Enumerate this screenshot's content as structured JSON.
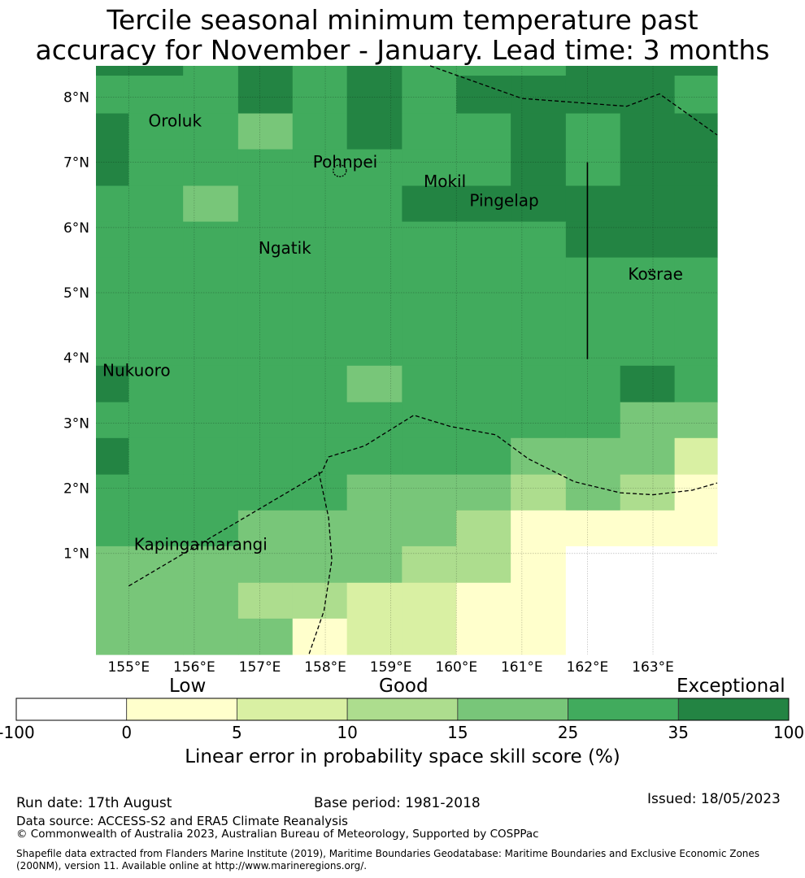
{
  "title": {
    "line1": "Tercile seasonal minimum temperature past",
    "line2": "accuracy for November - January. Lead time: 3 months"
  },
  "map": {
    "lon_range": [
      154.5,
      163.98
    ],
    "lat_range": [
      -0.55,
      8.48
    ],
    "lon_ticks": [
      {
        "value": 155,
        "label": "155°E"
      },
      {
        "value": 156,
        "label": "156°E"
      },
      {
        "value": 157,
        "label": "157°E"
      },
      {
        "value": 158,
        "label": "158°E"
      },
      {
        "value": 159,
        "label": "159°E"
      },
      {
        "value": 160,
        "label": "160°E"
      },
      {
        "value": 161,
        "label": "161°E"
      },
      {
        "value": 162,
        "label": "162°E"
      },
      {
        "value": 163,
        "label": "163°E"
      }
    ],
    "lat_ticks": [
      {
        "value": 8,
        "label": "8°N"
      },
      {
        "value": 7,
        "label": "7°N"
      },
      {
        "value": 6,
        "label": "6°N"
      },
      {
        "value": 5,
        "label": "5°N"
      },
      {
        "value": 4,
        "label": "4°N"
      },
      {
        "value": 3,
        "label": "3°N"
      },
      {
        "value": 2,
        "label": "2°N"
      },
      {
        "value": 1,
        "label": "1°N"
      }
    ],
    "grid_cells": {
      "lon_edges": [
        154.5,
        155.0,
        155.83,
        156.67,
        157.5,
        158.33,
        159.17,
        160.0,
        160.83,
        161.67,
        162.5,
        163.33,
        163.98
      ],
      "lat_edges": [
        8.48,
        8.33,
        7.75,
        7.2,
        6.64,
        6.09,
        5.54,
        4.98,
        4.43,
        3.88,
        3.32,
        2.77,
        2.21,
        1.66,
        1.11,
        0.55,
        0.0,
        -0.55
      ],
      "levels": [
        [
          6,
          6,
          5,
          6,
          5,
          6,
          5,
          5,
          5,
          6,
          6,
          6
        ],
        [
          5,
          5,
          5,
          6,
          5,
          6,
          5,
          6,
          6,
          6,
          6,
          5
        ],
        [
          6,
          5,
          5,
          4,
          5,
          6,
          5,
          5,
          6,
          5,
          6,
          6
        ],
        [
          6,
          5,
          5,
          5,
          5,
          5,
          5,
          5,
          6,
          5,
          6,
          6
        ],
        [
          5,
          5,
          4,
          5,
          5,
          5,
          6,
          6,
          6,
          6,
          6,
          6
        ],
        [
          5,
          5,
          5,
          5,
          5,
          5,
          5,
          5,
          5,
          6,
          6,
          6
        ],
        [
          5,
          5,
          5,
          5,
          5,
          5,
          5,
          5,
          5,
          5,
          5,
          5
        ],
        [
          5,
          5,
          5,
          5,
          5,
          5,
          5,
          5,
          5,
          5,
          5,
          5
        ],
        [
          5,
          5,
          5,
          5,
          5,
          5,
          5,
          5,
          5,
          5,
          5,
          5
        ],
        [
          6,
          5,
          5,
          5,
          5,
          4,
          5,
          5,
          5,
          5,
          6,
          5
        ],
        [
          5,
          5,
          5,
          5,
          5,
          5,
          5,
          5,
          5,
          5,
          4,
          4
        ],
        [
          6,
          5,
          5,
          5,
          5,
          5,
          5,
          5,
          4,
          4,
          4,
          2
        ],
        [
          5,
          5,
          5,
          5,
          5,
          4,
          4,
          4,
          3,
          4,
          3,
          1
        ],
        [
          5,
          5,
          5,
          4,
          4,
          4,
          4,
          3,
          1,
          1,
          1,
          1
        ],
        [
          4,
          4,
          4,
          4,
          4,
          4,
          3,
          3,
          1,
          0,
          0,
          0
        ],
        [
          4,
          4,
          4,
          3,
          3,
          2,
          2,
          1,
          1,
          0,
          0,
          0
        ],
        [
          4,
          4,
          4,
          4,
          1,
          2,
          2,
          1,
          1,
          0,
          0,
          0
        ]
      ]
    },
    "places": [
      {
        "name": "Oroluk",
        "lon": 155.3,
        "lat": 7.55
      },
      {
        "name": "Pohnpei",
        "lon": 157.81,
        "lat": 6.92
      },
      {
        "name": "Mokil",
        "lon": 159.5,
        "lat": 6.62
      },
      {
        "name": "Pingelap",
        "lon": 160.2,
        "lat": 6.33
      },
      {
        "name": "Ngatik",
        "lon": 156.98,
        "lat": 5.6
      },
      {
        "name": "Kosrae",
        "lon": 162.62,
        "lat": 5.2
      },
      {
        "name": "Nukuoro",
        "lon": 154.6,
        "lat": 3.72
      },
      {
        "name": "Kapingamarangi",
        "lon": 155.08,
        "lat": 1.05
      }
    ],
    "eez_boundaries": [
      [
        [
          159.6,
          8.48
        ],
        [
          161.0,
          7.98
        ],
        [
          162.6,
          7.86
        ],
        [
          163.1,
          8.05
        ],
        [
          163.98,
          7.42
        ]
      ],
      [
        [
          155.0,
          0.5
        ],
        [
          157.95,
          2.25
        ],
        [
          158.05,
          2.48
        ],
        [
          158.6,
          2.65
        ],
        [
          159.35,
          3.12
        ],
        [
          159.9,
          2.95
        ],
        [
          160.6,
          2.82
        ],
        [
          161.1,
          2.45
        ],
        [
          161.8,
          2.1
        ],
        [
          162.5,
          1.93
        ],
        [
          163.0,
          1.9
        ],
        [
          163.6,
          1.97
        ],
        [
          163.98,
          2.08
        ]
      ],
      [
        [
          157.9,
          2.25
        ],
        [
          158.05,
          1.55
        ],
        [
          158.1,
          0.9
        ],
        [
          157.98,
          0.12
        ],
        [
          157.75,
          -0.55
        ]
      ]
    ],
    "longitude_line": {
      "lon": 162.0,
      "lat_from": 3.98,
      "lat_to": 7.0
    },
    "islands": [
      {
        "name": "pohnpei-island",
        "lon": 158.22,
        "lat": 6.87,
        "rx": 0.1,
        "ry": 0.09
      },
      {
        "name": "kosrae-island",
        "lon": 162.98,
        "lat": 5.32,
        "rx": 0.05,
        "ry": 0.04
      }
    ]
  },
  "colorbar": {
    "boundaries": [
      "-100",
      "0",
      "5",
      "10",
      "15",
      "25",
      "35",
      "100"
    ],
    "colors": [
      "#ffffff",
      "#ffffcc",
      "#d9f0a3",
      "#addd8e",
      "#78c679",
      "#41ab5d",
      "#238443"
    ],
    "categories": {
      "low": "Low",
      "good": "Good",
      "exceptional": "Exceptional"
    },
    "label": "Linear error in probability space skill score (%)"
  },
  "footer": {
    "run_date": "Run date: 17th August",
    "base_period": "Base period: 1981-2018",
    "issued": "Issued: 18/05/2023",
    "data_source": "Data source: ACCESS-S2 and ERA5 Climate Reanalysis",
    "copyright": "© Commonwealth of Australia 2023, Australian Bureau of Meteorology, Supported by COSPPac",
    "shapefile": "Shapefile data extracted from Flanders Marine Institute (2019), Maritime Boundaries Geodatabase: Maritime Boundaries and Exclusive Economic Zones (200NM), version 11. Available online at http://www.marineregions.org/."
  }
}
